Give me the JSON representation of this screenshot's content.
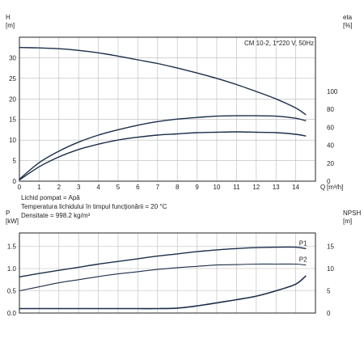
{
  "chart_data": [
    {
      "type": "line",
      "title": "CM 10-2, 1*220 V, 50Hz",
      "xlabel": "Q",
      "x_unit": "[m³/h]",
      "x_ticks": [
        "0",
        "1",
        "2",
        "3",
        "4",
        "5",
        "6",
        "7",
        "8",
        "9",
        "10",
        "11",
        "12",
        "13",
        "14"
      ],
      "xlim": [
        0,
        15
      ],
      "grid": true,
      "left_axis": {
        "label": "H",
        "unit": "[m]",
        "ticks": [
          "0",
          "5",
          "10",
          "15",
          "20",
          "25",
          "30"
        ],
        "ylim": [
          0,
          35
        ]
      },
      "right_axis": {
        "label": "eta",
        "unit": "[%]",
        "ticks": [
          "0",
          "20",
          "40",
          "60",
          "80",
          "100"
        ],
        "ylim": [
          0,
          160
        ]
      },
      "series": [
        {
          "axis": "left",
          "color": "#1c2e4a",
          "x": [
            0,
            1,
            2,
            3,
            4,
            5,
            6,
            7,
            8,
            9,
            10,
            11,
            12,
            13,
            14,
            14.5
          ],
          "y": [
            32.5,
            32.4,
            32.2,
            31.8,
            31.2,
            30.4,
            29.5,
            28.6,
            27.5,
            26.3,
            25.0,
            23.5,
            21.8,
            20.0,
            17.8,
            16.2
          ]
        },
        {
          "axis": "left",
          "color": "#1c2e4a",
          "x": [
            0,
            1,
            2,
            3,
            4,
            5,
            6,
            7,
            8,
            9,
            10,
            11,
            12,
            13,
            14,
            14.5
          ],
          "y": [
            0.5,
            4.5,
            7.3,
            9.5,
            11.2,
            12.5,
            13.6,
            14.5,
            15.1,
            15.5,
            15.8,
            15.9,
            15.9,
            15.8,
            15.3,
            14.7
          ]
        },
        {
          "axis": "left",
          "color": "#1c2e4a",
          "x": [
            0,
            1,
            2,
            3,
            4,
            5,
            6,
            7,
            8,
            9,
            10,
            11,
            12,
            13,
            14,
            14.5
          ],
          "y": [
            0.3,
            3.5,
            5.9,
            7.7,
            9.0,
            10.0,
            10.7,
            11.2,
            11.5,
            11.8,
            11.9,
            12.0,
            11.9,
            11.8,
            11.4,
            11.0
          ]
        }
      ],
      "annotations": [
        "Lichid pompat = Apă",
        "Temperatura lichidului în timpul funcţionării = 20 °C",
        "Densitate = 998.2 kg/m³"
      ]
    },
    {
      "type": "line",
      "xlim": [
        0,
        15
      ],
      "grid": true,
      "left_axis": {
        "label": "P",
        "unit": "[kW]",
        "ticks": [
          "0.0",
          "0.5",
          "1.0",
          "1.5"
        ],
        "ylim": [
          0,
          1.8
        ]
      },
      "right_axis": {
        "label": "NPSH",
        "unit": "[m]",
        "ticks": [
          "0",
          "5",
          "10",
          "15"
        ],
        "ylim": [
          0,
          18
        ]
      },
      "series": [
        {
          "name": "P1",
          "axis": "left",
          "color": "#1c2e4a",
          "x": [
            0,
            1,
            2,
            3,
            4,
            5,
            6,
            7,
            8,
            9,
            10,
            11,
            12,
            13,
            14,
            14.5
          ],
          "y": [
            0.81,
            0.89,
            0.96,
            1.03,
            1.1,
            1.16,
            1.22,
            1.28,
            1.33,
            1.38,
            1.42,
            1.45,
            1.47,
            1.48,
            1.48,
            1.45
          ]
        },
        {
          "name": "P2",
          "axis": "left",
          "color": "#1c2e4a",
          "x": [
            0,
            1,
            2,
            3,
            4,
            5,
            6,
            7,
            8,
            9,
            10,
            11,
            12,
            13,
            14,
            14.5
          ],
          "y": [
            0.5,
            0.59,
            0.68,
            0.75,
            0.82,
            0.88,
            0.93,
            0.98,
            1.02,
            1.05,
            1.08,
            1.09,
            1.1,
            1.1,
            1.1,
            1.08
          ]
        },
        {
          "axis": "right",
          "color": "#1c2e4a",
          "x": [
            0,
            1,
            2,
            3,
            4,
            5,
            6,
            7,
            8,
            9,
            10,
            11,
            12,
            13,
            14,
            14.5
          ],
          "y": [
            1.0,
            1.0,
            1.0,
            1.0,
            1.0,
            1.0,
            1.0,
            1.0,
            1.1,
            1.6,
            2.3,
            3.0,
            3.8,
            5.0,
            6.5,
            8.3
          ]
        }
      ]
    }
  ]
}
